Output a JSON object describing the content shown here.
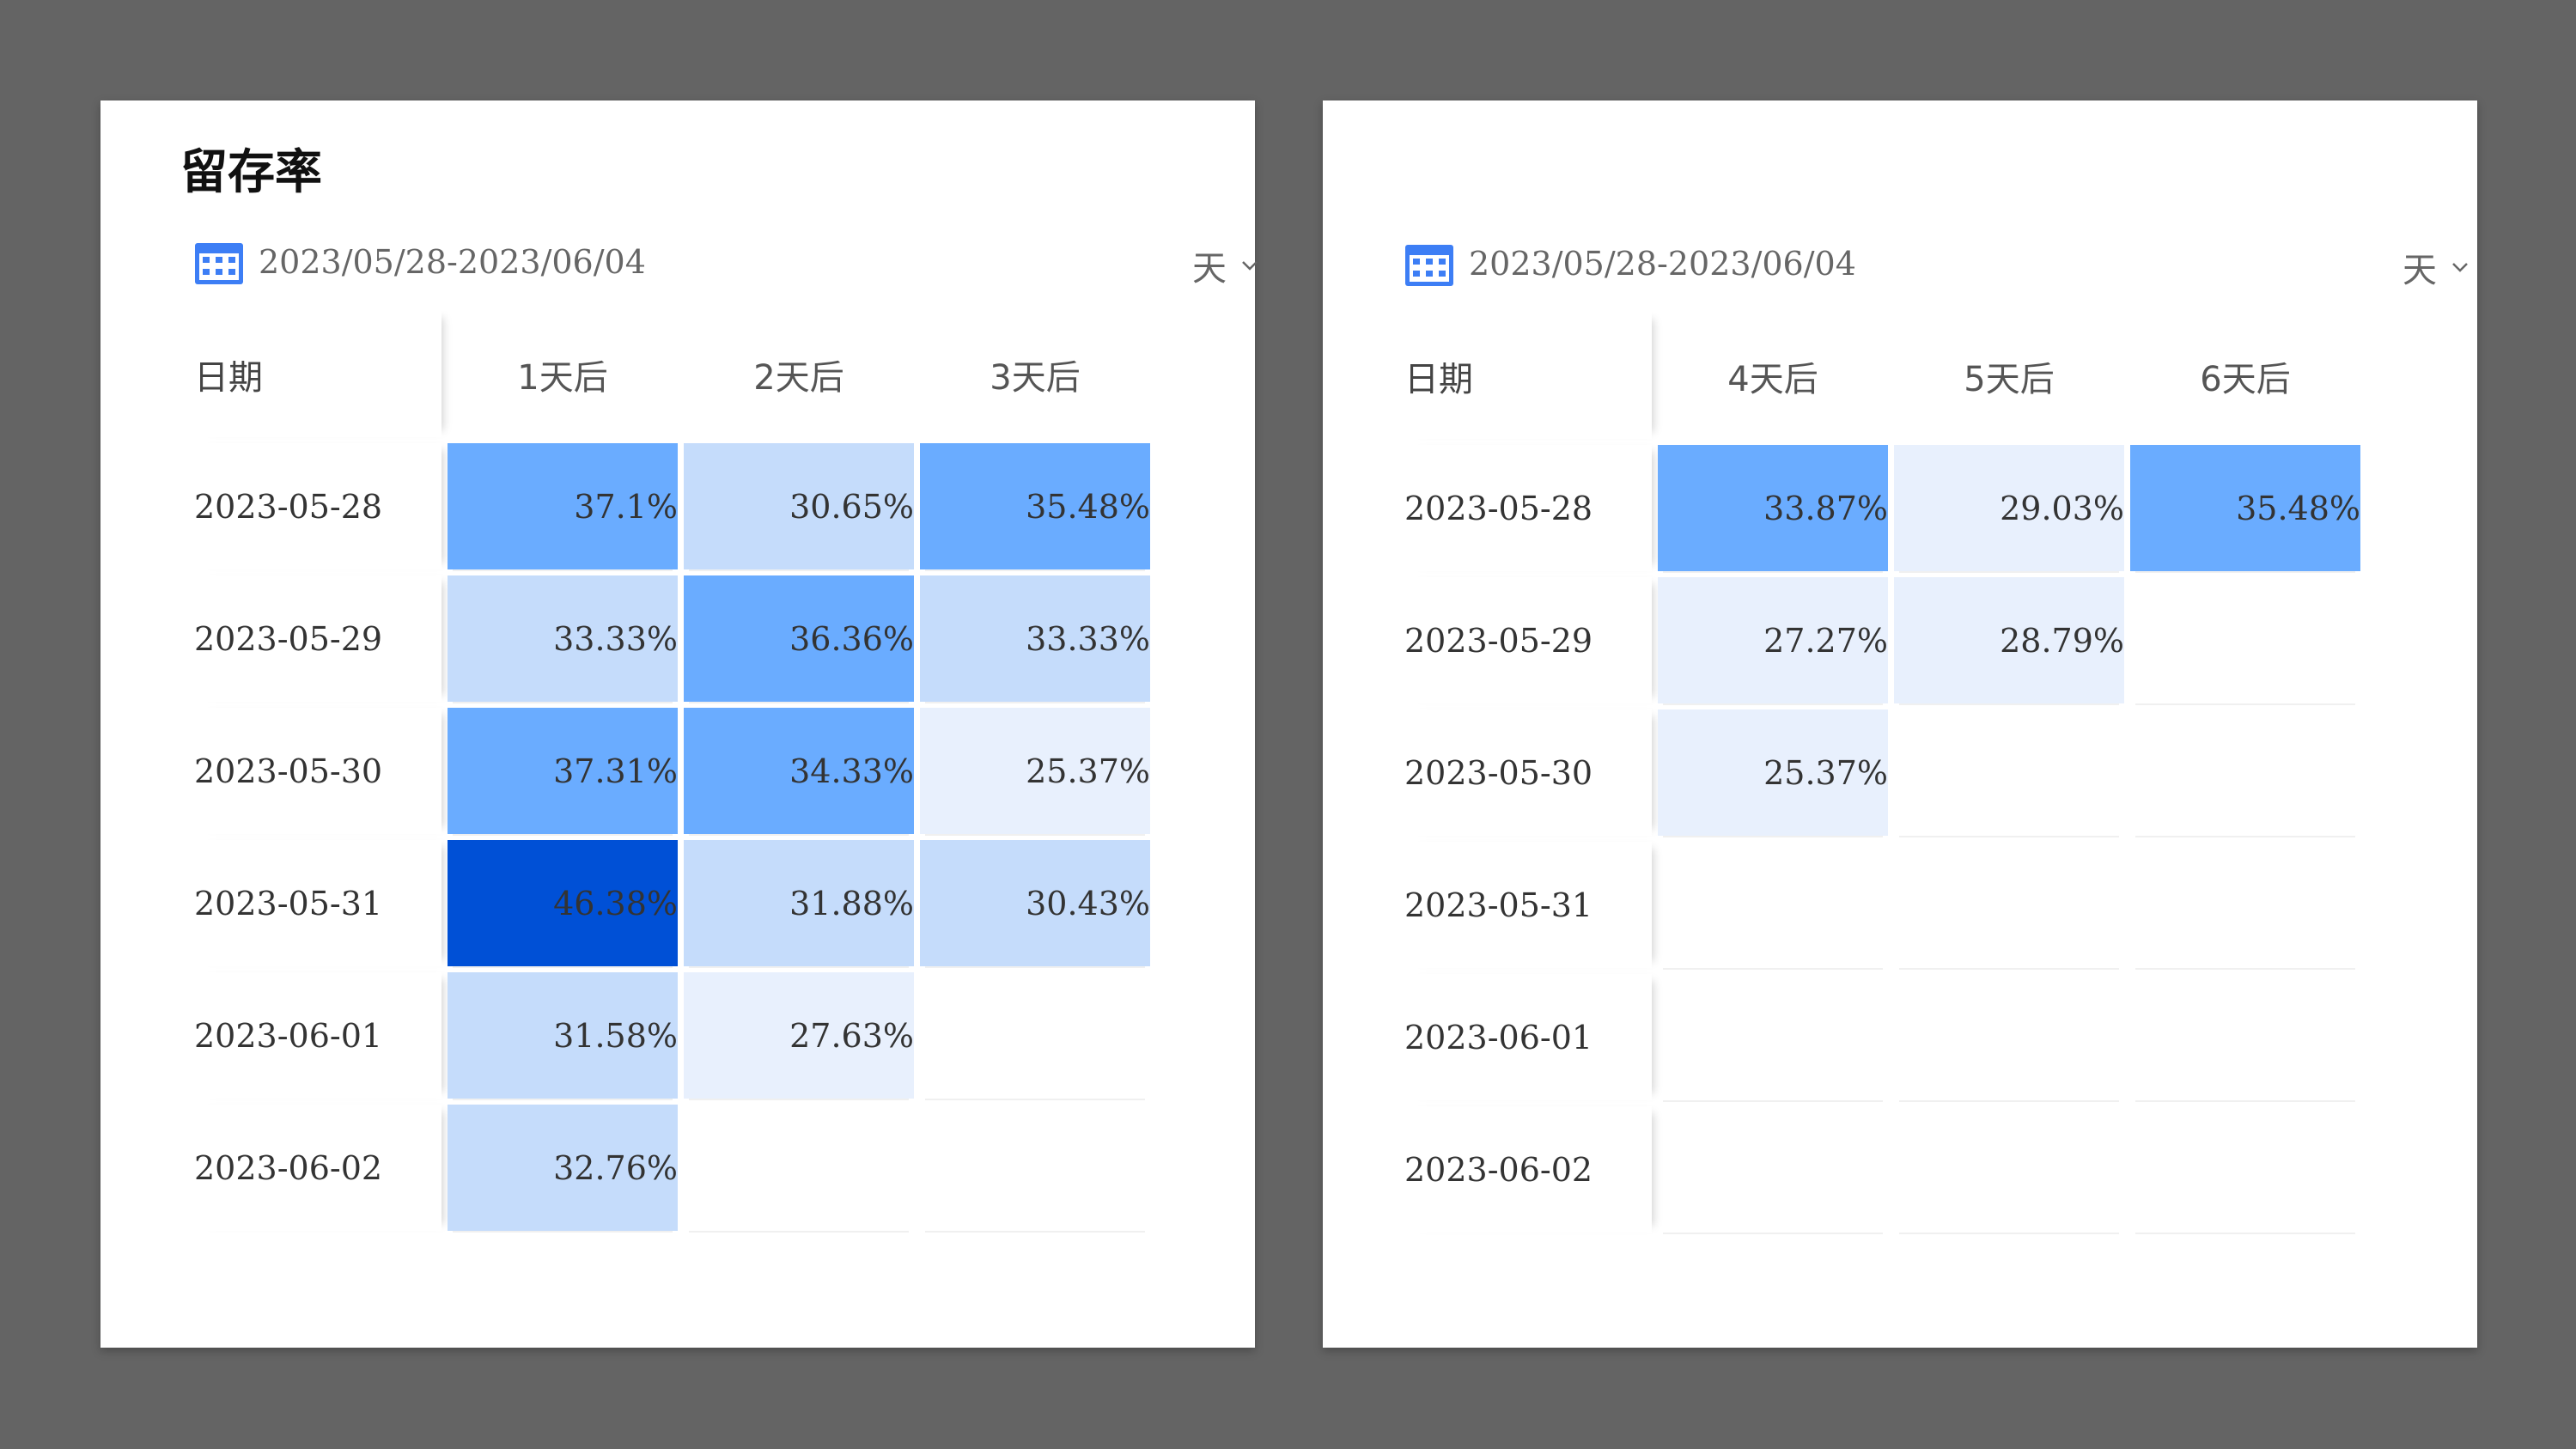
{
  "left_panel": {
    "title": "留存率",
    "date_range": "2023/05/28-2023/06/04",
    "unit": "天",
    "date_header": "日期",
    "columns": [
      "1天后",
      "2天后",
      "3天后"
    ],
    "rows": [
      {
        "date": "2023-05-28",
        "values": [
          "37.1%",
          "30.65%",
          "35.48%"
        ]
      },
      {
        "date": "2023-05-29",
        "values": [
          "33.33%",
          "36.36%",
          "33.33%"
        ]
      },
      {
        "date": "2023-05-30",
        "values": [
          "37.31%",
          "34.33%",
          "25.37%"
        ]
      },
      {
        "date": "2023-05-31",
        "values": [
          "46.38%",
          "31.88%",
          "30.43%"
        ]
      },
      {
        "date": "2023-06-01",
        "values": [
          "31.58%",
          "27.63%",
          ""
        ]
      },
      {
        "date": "2023-06-02",
        "values": [
          "32.76%",
          "",
          ""
        ]
      }
    ]
  },
  "right_panel": {
    "date_range": "2023/05/28-2023/06/04",
    "unit": "天",
    "date_header": "日期",
    "columns": [
      "4天后",
      "5天后",
      "6天后"
    ],
    "rows": [
      {
        "date": "2023-05-28",
        "values": [
          "33.87%",
          "29.03%",
          "35.48%"
        ]
      },
      {
        "date": "2023-05-29",
        "values": [
          "27.27%",
          "28.79%",
          ""
        ]
      },
      {
        "date": "2023-05-30",
        "values": [
          "25.37%",
          "",
          ""
        ]
      },
      {
        "date": "2023-05-31",
        "values": [
          "",
          "",
          ""
        ]
      },
      {
        "date": "2023-06-01",
        "values": [
          "",
          "",
          ""
        ]
      },
      {
        "date": "2023-06-02",
        "values": [
          "",
          "",
          ""
        ]
      }
    ]
  },
  "colors": {
    "dark": "#0050d6",
    "mid": "#6aacff",
    "light": "#c5dcfb",
    "pale": "#e8f0fd",
    "icon": "#3d7ef5"
  },
  "icons": {
    "calendar": "calendar-icon",
    "dropdown": "chevron-down-icon"
  }
}
